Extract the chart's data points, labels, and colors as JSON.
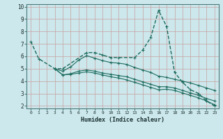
{
  "xlabel": "Humidex (Indice chaleur)",
  "background_color": "#cce8ec",
  "grid_color": "#b0d0d4",
  "line_color": "#1e6b5e",
  "xlim": [
    -0.5,
    23.5
  ],
  "ylim": [
    1.8,
    10.2
  ],
  "xticks": [
    0,
    1,
    2,
    3,
    4,
    5,
    6,
    7,
    8,
    9,
    10,
    11,
    12,
    13,
    14,
    15,
    16,
    17,
    18,
    19,
    20,
    21,
    22,
    23
  ],
  "yticks": [
    2,
    3,
    4,
    5,
    6,
    7,
    8,
    9,
    10
  ],
  "lines": [
    {
      "x": [
        0,
        1,
        3,
        4,
        7,
        8,
        9,
        10,
        11,
        13,
        14,
        15,
        16,
        17,
        18,
        19,
        20,
        21,
        22,
        23
      ],
      "y": [
        7.2,
        5.8,
        5.0,
        5.0,
        6.3,
        6.3,
        6.1,
        5.9,
        5.9,
        5.9,
        6.5,
        7.5,
        9.7,
        8.4,
        4.7,
        3.9,
        3.3,
        3.0,
        2.4,
        2.0
      ],
      "linestyle": "--",
      "marker": "+"
    },
    {
      "x": [
        3,
        4,
        5,
        6,
        7,
        8,
        9,
        10,
        11,
        12,
        13,
        14,
        15,
        16,
        17,
        18,
        19,
        20,
        21,
        22,
        23
      ],
      "y": [
        5.0,
        4.8,
        5.15,
        5.7,
        6.05,
        5.85,
        5.65,
        5.5,
        5.45,
        5.35,
        5.1,
        4.9,
        4.7,
        4.4,
        4.3,
        4.15,
        4.0,
        3.85,
        3.65,
        3.45,
        3.25
      ],
      "linestyle": "-",
      "marker": "+"
    },
    {
      "x": [
        3,
        4,
        5,
        6,
        7,
        8,
        9,
        10,
        11,
        12,
        13,
        14,
        15,
        16,
        17,
        18,
        19,
        20,
        21,
        22,
        23
      ],
      "y": [
        5.0,
        4.5,
        4.6,
        4.8,
        4.9,
        4.8,
        4.65,
        4.55,
        4.45,
        4.35,
        4.15,
        3.95,
        3.75,
        3.55,
        3.55,
        3.45,
        3.25,
        3.05,
        2.85,
        2.6,
        2.4
      ],
      "linestyle": "-",
      "marker": "+"
    },
    {
      "x": [
        3,
        4,
        5,
        6,
        7,
        8,
        9,
        10,
        11,
        12,
        13,
        14,
        15,
        16,
        17,
        18,
        19,
        20,
        21,
        22,
        23
      ],
      "y": [
        5.0,
        4.5,
        4.55,
        4.65,
        4.75,
        4.65,
        4.5,
        4.35,
        4.25,
        4.1,
        3.9,
        3.7,
        3.5,
        3.3,
        3.35,
        3.25,
        3.05,
        2.85,
        2.65,
        2.4,
        2.1
      ],
      "linestyle": "-",
      "marker": "+"
    }
  ]
}
